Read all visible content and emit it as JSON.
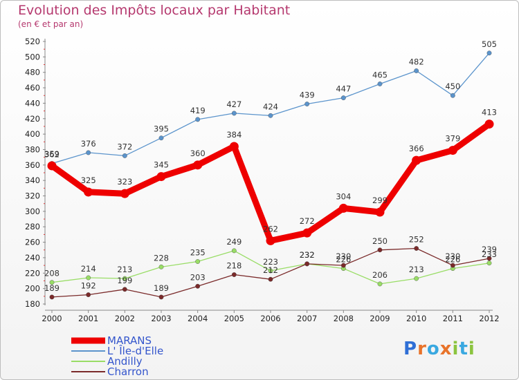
{
  "title": "Evolution des Impôts locaux par Habitant",
  "subtitle": "(en € et par an)",
  "logo": {
    "text": "Proxiti",
    "letters": [
      "P",
      "r",
      "o",
      "x",
      "i",
      "t",
      "i"
    ],
    "colors": [
      "#2f6fd6",
      "#e8732a",
      "#39a8e0",
      "#e8732a",
      "#8bc43f",
      "#39a8e0",
      "#8bc43f"
    ]
  },
  "chart_data": {
    "type": "line",
    "title": "Evolution des Impôts locaux par Habitant",
    "subtitle": "(en € et par an)",
    "x": [
      "2000",
      "2001",
      "2002",
      "2003",
      "2004",
      "2005",
      "2006",
      "2007",
      "2008",
      "2009",
      "2010",
      "2011",
      "2012"
    ],
    "ylim": [
      180,
      520
    ],
    "yticks": [
      180,
      200,
      220,
      240,
      260,
      280,
      300,
      320,
      340,
      360,
      380,
      400,
      420,
      440,
      460,
      480,
      500,
      520
    ],
    "grid": false,
    "legend_position": "bottom-left",
    "series": [
      {
        "name": "MARANS",
        "color": "#ee0000",
        "values": [
          359,
          325,
          323,
          345,
          360,
          384,
          262,
          272,
          304,
          299,
          366,
          379,
          413
        ]
      },
      {
        "name": "L' Île-d'Elle",
        "color": "#5b94cc",
        "values": [
          362,
          376,
          372,
          395,
          419,
          427,
          424,
          439,
          447,
          465,
          482,
          450,
          505
        ]
      },
      {
        "name": "Andilly",
        "color": "#99dd66",
        "values": [
          208,
          214,
          213,
          228,
          235,
          249,
          223,
          232,
          226,
          206,
          213,
          226,
          233
        ]
      },
      {
        "name": "Charron",
        "color": "#7a2a2a",
        "values": [
          189,
          192,
          199,
          189,
          203,
          218,
          212,
          232,
          230,
          250,
          252,
          230,
          239
        ]
      }
    ],
    "data_labels": [
      [
        "359",
        "325",
        "323",
        "345",
        "360",
        "384",
        "262",
        "272",
        "304",
        "299",
        "366",
        "379",
        "413"
      ],
      [
        "362",
        "376",
        "372",
        "395",
        "419",
        "427",
        "424",
        "439",
        "447",
        "465",
        "482",
        "450",
        "505"
      ],
      [
        "208",
        "214",
        "213",
        "228",
        "235",
        "249",
        "223",
        "232",
        "226",
        "206",
        "213",
        "226",
        "233"
      ],
      [
        "189",
        "192",
        "199",
        "189",
        "203",
        "218",
        "212",
        "232",
        "230",
        "250",
        "252",
        "230",
        "239"
      ]
    ]
  }
}
